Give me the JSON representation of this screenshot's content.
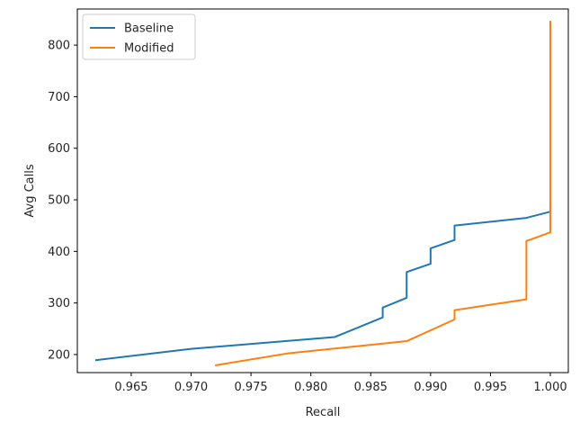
{
  "chart_data": {
    "type": "line",
    "title": "",
    "xlabel": "Recall",
    "ylabel": "Avg Calls",
    "xlim": [
      0.9605,
      1.0015
    ],
    "ylim": [
      165,
      870
    ],
    "xticks": [
      0.965,
      0.97,
      0.975,
      0.98,
      0.985,
      0.99,
      0.995,
      1.0
    ],
    "xtick_labels": [
      "0.965",
      "0.970",
      "0.975",
      "0.980",
      "0.985",
      "0.990",
      "0.995",
      "1.000"
    ],
    "yticks": [
      200,
      300,
      400,
      500,
      600,
      700,
      800
    ],
    "ytick_labels": [
      "200",
      "300",
      "400",
      "500",
      "600",
      "700",
      "800"
    ],
    "grid": false,
    "legend_position": "top-left",
    "series": [
      {
        "name": "Baseline",
        "color": "#1f77b4",
        "points": [
          [
            0.962,
            189
          ],
          [
            0.97,
            211
          ],
          [
            0.982,
            234
          ],
          [
            0.986,
            272
          ],
          [
            0.986,
            291
          ],
          [
            0.988,
            310
          ],
          [
            0.988,
            360
          ],
          [
            0.99,
            376
          ],
          [
            0.99,
            406
          ],
          [
            0.992,
            422
          ],
          [
            0.992,
            450
          ],
          [
            0.998,
            465
          ],
          [
            1.0,
            477
          ],
          [
            1.0,
            780
          ]
        ]
      },
      {
        "name": "Modified",
        "color": "#ff7f0e",
        "points": [
          [
            0.972,
            179
          ],
          [
            0.978,
            202
          ],
          [
            0.988,
            226
          ],
          [
            0.992,
            268
          ],
          [
            0.992,
            286
          ],
          [
            0.998,
            307
          ],
          [
            0.998,
            420
          ],
          [
            1.0,
            437
          ],
          [
            1.0,
            847
          ]
        ]
      }
    ]
  }
}
